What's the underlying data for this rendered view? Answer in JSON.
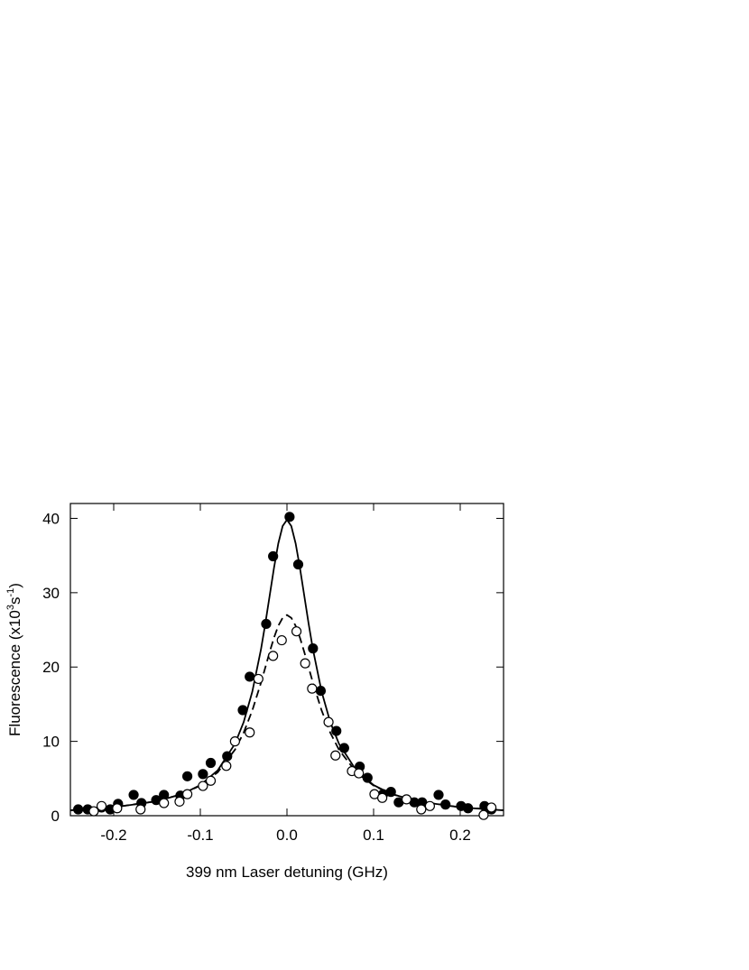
{
  "chart_data": {
    "type": "scatter",
    "x_label": "399 nm Laser detuning (GHz)",
    "y_label": [
      "Fluorescence (x10",
      "3",
      "s",
      "-1",
      ")"
    ],
    "xlim": [
      -0.25,
      0.25
    ],
    "ylim": [
      0,
      42
    ],
    "xticks": [
      -0.2,
      -0.1,
      {
        "value": 0,
        "label": "0.0"
      },
      0.1,
      0.2
    ],
    "yticks": [
      0,
      10,
      20,
      30,
      40
    ],
    "color": "#000000",
    "series": [
      {
        "kind": "points",
        "marker": "filled",
        "x": [
          -0.241,
          -0.23,
          -0.214,
          -0.204,
          -0.195,
          -0.177,
          -0.168,
          -0.151,
          -0.142,
          -0.123,
          -0.115,
          -0.097,
          -0.088,
          -0.069,
          -0.051,
          -0.043,
          -0.024,
          -0.016,
          0.003,
          0.013,
          0.03,
          0.039,
          0.057,
          0.066,
          0.084,
          0.093,
          0.111,
          0.12,
          0.129,
          0.147,
          0.156,
          0.175,
          0.183,
          0.201,
          0.209,
          0.228,
          0.236
        ],
        "values": [
          0.85,
          0.85,
          1.1,
          0.85,
          1.6,
          2.8,
          1.7,
          2.1,
          2.8,
          2.7,
          5.3,
          5.6,
          7.1,
          8.0,
          14.2,
          18.7,
          25.8,
          34.9,
          40.2,
          33.8,
          22.5,
          16.8,
          11.4,
          9.1,
          6.6,
          5.1,
          2.9,
          3.2,
          1.8,
          1.8,
          1.8,
          2.8,
          1.5,
          1.3,
          1.0,
          1.3,
          0.85
        ]
      },
      {
        "kind": "points",
        "marker": "open",
        "x": [
          -0.223,
          -0.214,
          -0.196,
          -0.169,
          -0.142,
          -0.124,
          -0.115,
          -0.097,
          -0.088,
          -0.07,
          -0.06,
          -0.043,
          -0.033,
          -0.016,
          -0.006,
          0.011,
          0.021,
          0.029,
          0.048,
          0.056,
          0.075,
          0.083,
          0.101,
          0.11,
          0.138,
          0.155,
          0.165,
          0.227,
          0.236
        ],
        "values": [
          0.6,
          1.3,
          1.0,
          0.85,
          1.7,
          1.9,
          2.9,
          4.0,
          4.7,
          6.7,
          10.0,
          11.2,
          18.4,
          21.5,
          23.6,
          24.8,
          20.5,
          17.1,
          12.6,
          8.1,
          6.0,
          5.7,
          2.9,
          2.4,
          2.2,
          0.85,
          1.3,
          0.1,
          1.1
        ]
      },
      {
        "kind": "line",
        "dash": "solid",
        "x": [
          -0.25,
          -0.2,
          -0.15,
          -0.12,
          -0.1,
          -0.08,
          -0.06,
          -0.05,
          -0.04,
          -0.03,
          -0.025,
          -0.02,
          -0.015,
          -0.01,
          -0.005,
          0,
          0.005,
          0.01,
          0.015,
          0.02,
          0.025,
          0.03,
          0.04,
          0.05,
          0.06,
          0.08,
          0.1,
          0.12,
          0.15,
          0.2,
          0.25
        ],
        "values": [
          0.72,
          1.12,
          1.95,
          2.96,
          4.12,
          6.09,
          9.68,
          12.58,
          16.69,
          22.37,
          25.83,
          29.57,
          33.32,
          36.63,
          38.96,
          39.8,
          38.96,
          36.63,
          33.32,
          29.57,
          25.83,
          22.37,
          16.69,
          12.58,
          9.68,
          6.09,
          4.12,
          2.96,
          1.95,
          1.12,
          0.72
        ]
      },
      {
        "kind": "line",
        "dash": "dashed",
        "x": [
          -0.25,
          -0.2,
          -0.15,
          -0.12,
          -0.1,
          -0.08,
          -0.06,
          -0.05,
          -0.04,
          -0.03,
          -0.025,
          -0.02,
          -0.015,
          -0.01,
          -0.005,
          0,
          0.005,
          0.01,
          0.015,
          0.02,
          0.025,
          0.03,
          0.04,
          0.05,
          0.06,
          0.08,
          0.1,
          0.12,
          0.15,
          0.2,
          0.25
        ],
        "values": [
          0.74,
          1.14,
          1.96,
          2.95,
          4.05,
          5.83,
          8.88,
          11.17,
          14.16,
          17.88,
          19.94,
          22.01,
          23.94,
          25.55,
          26.62,
          27,
          26.62,
          25.55,
          23.94,
          22.01,
          19.94,
          17.88,
          14.16,
          11.17,
          8.88,
          5.83,
          4.05,
          2.95,
          1.96,
          1.14,
          0.74
        ]
      }
    ]
  }
}
